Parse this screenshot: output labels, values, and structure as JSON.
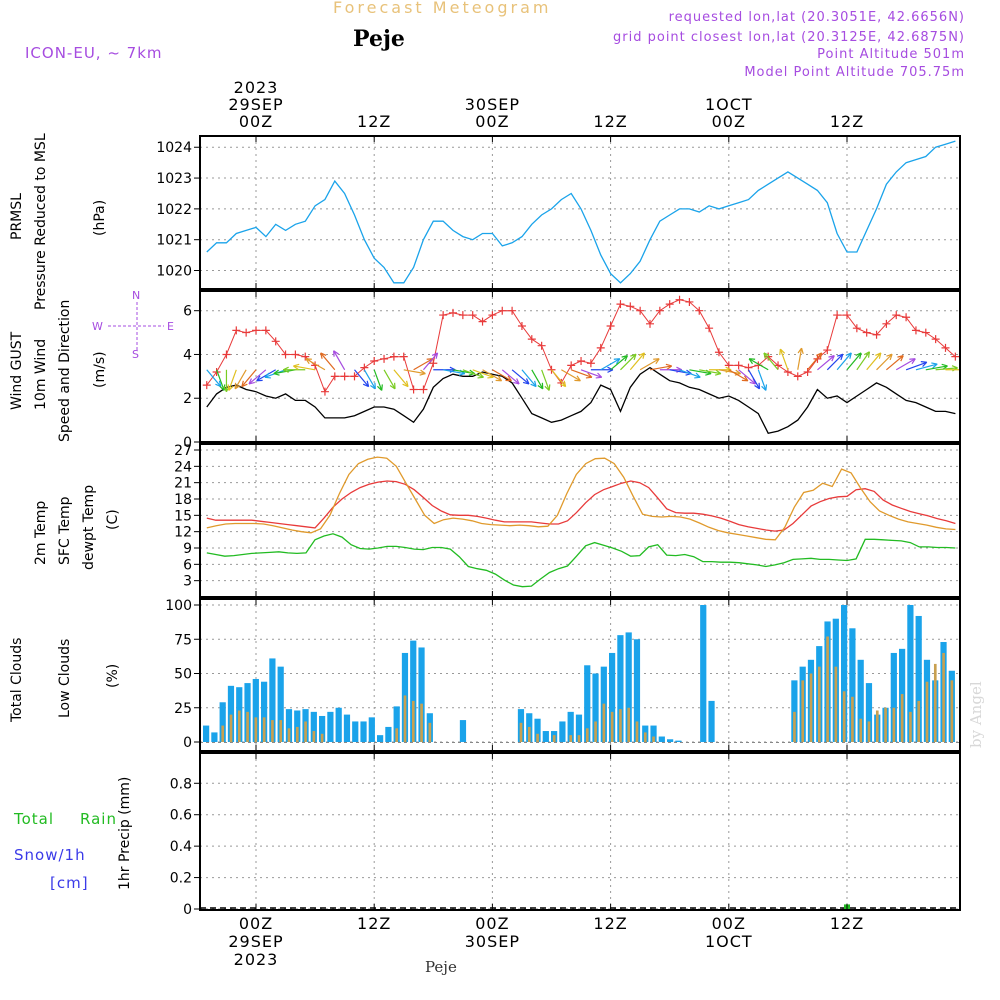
{
  "header": {
    "title": "Forecast Meteogram",
    "place": "Peje",
    "model": "ICON-EU, ~ 7km",
    "requested": "requested lon,lat (20.3051E, 42.6656N)",
    "gridpoint": "grid point closest lon,lat (20.3125E, 42.6875N)",
    "point_alt": "Point Altitude 501m",
    "model_alt": "Model Point Altitude 705.75m"
  },
  "time_axis": {
    "top_labels": [
      {
        "t": 0,
        "lines": [
          "2023",
          "29SEP",
          "00Z"
        ]
      },
      {
        "t": 12,
        "lines": [
          "12Z"
        ]
      },
      {
        "t": 24,
        "lines": [
          "30SEP",
          "00Z"
        ]
      },
      {
        "t": 36,
        "lines": [
          "12Z"
        ]
      },
      {
        "t": 48,
        "lines": [
          "1OCT",
          "00Z"
        ]
      },
      {
        "t": 60,
        "lines": [
          "12Z"
        ]
      }
    ],
    "bottom_labels": [
      {
        "t": 0,
        "lines": [
          "00Z",
          "29SEP",
          "2023"
        ]
      },
      {
        "t": 12,
        "lines": [
          "12Z"
        ]
      },
      {
        "t": 24,
        "lines": [
          "00Z",
          "30SEP"
        ]
      },
      {
        "t": 36,
        "lines": [
          "12Z"
        ]
      },
      {
        "t": 48,
        "lines": [
          "00Z",
          "1OCT"
        ]
      },
      {
        "t": 60,
        "lines": [
          "12Z"
        ]
      }
    ],
    "hours_start": -5,
    "hours_end": 71
  },
  "panels": {
    "pressure": {
      "labels": [
        "PRMSL",
        "Pressure Reduced to MSL",
        "(hPa)"
      ],
      "label_colors": [
        "#1aa3ea",
        "#1aa3ea",
        "#000000"
      ]
    },
    "wind": {
      "labels": [
        "Wind GUST",
        "10m Wind",
        "Speed and Direction",
        "(m/s)"
      ],
      "label_colors": [
        "#e83a3a",
        "#000000",
        "#22bb22",
        "#000000"
      ],
      "compass": {
        "n": "N",
        "s": "S",
        "w": "W",
        "e": "E"
      }
    },
    "temp": {
      "labels": [
        "2m Temp",
        "SFC Temp",
        "dewpt Temp",
        "(C)"
      ],
      "label_colors": [
        "#e83a3a",
        "#e09a2c",
        "#22bb22",
        "#000000"
      ]
    },
    "clouds": {
      "labels": [
        "Total Clouds",
        "Low Clouds",
        "(%)"
      ],
      "label_colors": [
        "#1aa3ea",
        "#e09a2c",
        "#000000"
      ]
    },
    "precip": {
      "ylabel": "1hr Precip (mm)",
      "legend_rain_1": "Total",
      "legend_rain_2": "Rain",
      "legend_snow": "Snow/1h",
      "legend_cm": "[cm]",
      "rain_color": "#22bb22",
      "snow_color": "#3a3ae8"
    }
  },
  "watermark": "by Angel",
  "footer_place": "Peje",
  "chart_data": [
    {
      "type": "line",
      "title": "PRMSL Pressure Reduced to MSL",
      "ylabel": "(hPa)",
      "ylim": [
        1019.4,
        1024.3
      ],
      "yticks": [
        1020,
        1021,
        1022,
        1023,
        1024
      ],
      "color": "#1aa3ea",
      "x": [
        -5,
        -4,
        -3,
        -2,
        -1,
        0,
        1,
        2,
        3,
        4,
        5,
        6,
        7,
        8,
        9,
        10,
        11,
        12,
        13,
        14,
        15,
        16,
        17,
        18,
        19,
        20,
        21,
        22,
        23,
        24,
        25,
        26,
        27,
        28,
        29,
        30,
        31,
        32,
        33,
        34,
        35,
        36,
        37,
        38,
        39,
        40,
        41,
        42,
        43,
        44,
        45,
        46,
        47,
        48,
        49,
        50,
        51,
        52,
        53,
        54,
        55,
        56,
        57,
        58,
        59,
        60,
        61,
        62,
        63,
        64,
        65,
        66,
        67,
        68,
        69,
        70,
        71
      ],
      "values": [
        1020.6,
        1020.9,
        1020.9,
        1021.2,
        1021.3,
        1021.4,
        1021.1,
        1021.5,
        1021.3,
        1021.5,
        1021.6,
        1022.1,
        1022.3,
        1022.9,
        1022.5,
        1021.8,
        1021.0,
        1020.4,
        1020.1,
        1019.6,
        1019.6,
        1020.1,
        1021.0,
        1021.6,
        1021.6,
        1021.3,
        1021.1,
        1021.0,
        1021.2,
        1021.2,
        1020.8,
        1020.9,
        1021.1,
        1021.5,
        1021.8,
        1022.0,
        1022.3,
        1022.5,
        1022.0,
        1021.3,
        1020.5,
        1019.9,
        1019.6,
        1019.9,
        1020.3,
        1021.0,
        1021.6,
        1021.8,
        1022.0,
        1022.0,
        1021.9,
        1022.1,
        1022.0,
        1022.1,
        1022.2,
        1022.3,
        1022.6,
        1022.8,
        1023.0,
        1023.2,
        1023.0,
        1022.8,
        1022.6,
        1022.2,
        1021.2,
        1020.6,
        1020.6,
        1021.3,
        1022.0,
        1022.8,
        1023.2,
        1023.5,
        1023.6,
        1023.7,
        1024.0,
        1024.1,
        1024.2
      ]
    },
    {
      "type": "line",
      "title": "Wind GUST / 10m Wind Speed and Direction",
      "ylabel": "(m/s)",
      "ylim": [
        0,
        6.9
      ],
      "yticks": [
        0,
        2,
        4,
        6
      ],
      "x_start": -5,
      "x_end": 71,
      "series": [
        {
          "name": "Wind GUST",
          "color": "#e83a3a",
          "marker": "+",
          "values": [
            2.6,
            3.2,
            4.0,
            5.1,
            5.0,
            5.1,
            5.1,
            4.6,
            4.0,
            4.0,
            3.9,
            3.5,
            2.3,
            3.0,
            3.0,
            3.0,
            3.4,
            3.7,
            3.8,
            3.9,
            3.9,
            2.4,
            2.4,
            3.6,
            5.8,
            5.9,
            5.8,
            5.8,
            5.5,
            5.8,
            6.0,
            6.0,
            5.3,
            4.7,
            4.4,
            3.3,
            2.7,
            3.5,
            3.7,
            3.6,
            4.3,
            5.3,
            6.3,
            6.2,
            6.0,
            5.4,
            6.0,
            6.3,
            6.5,
            6.4,
            6.0,
            5.2,
            4.1,
            3.5,
            3.5,
            3.4,
            3.5,
            3.9,
            3.5,
            3.2,
            3.0,
            3.2,
            3.8,
            4.2,
            5.8,
            5.8,
            5.2,
            5.0,
            4.9,
            5.4,
            5.8,
            5.7,
            5.1,
            5.0,
            4.7,
            4.3,
            3.9
          ]
        },
        {
          "name": "10m Wind",
          "color": "#000000",
          "values": [
            1.6,
            2.2,
            2.5,
            2.6,
            2.4,
            2.3,
            2.1,
            2.0,
            2.2,
            1.9,
            1.9,
            1.6,
            1.1,
            1.1,
            1.1,
            1.2,
            1.4,
            1.6,
            1.6,
            1.5,
            1.2,
            0.9,
            1.5,
            2.5,
            2.9,
            3.1,
            3.0,
            3.0,
            3.2,
            3.1,
            3.0,
            2.7,
            2.0,
            1.3,
            1.1,
            0.9,
            1.0,
            1.2,
            1.4,
            1.8,
            2.6,
            2.4,
            1.4,
            2.5,
            3.1,
            3.4,
            3.1,
            2.8,
            2.7,
            2.5,
            2.4,
            2.2,
            2.0,
            2.1,
            1.9,
            1.6,
            1.3,
            0.4,
            0.5,
            0.7,
            1.0,
            1.6,
            2.4,
            2.0,
            2.1,
            1.8,
            2.1,
            2.4,
            2.7,
            2.5,
            2.2,
            1.9,
            1.8,
            1.6,
            1.4,
            1.4,
            1.3
          ]
        },
        {
          "name": "wind-barbs",
          "y_level": 3.3,
          "directions": [
            140,
            160,
            180,
            200,
            210,
            220,
            230,
            240,
            250,
            260,
            270,
            280,
            300,
            320,
            330,
            140,
            150,
            160,
            150,
            140,
            100,
            60,
            40,
            90,
            100,
            100,
            110,
            110,
            120,
            120,
            130,
            130,
            140,
            150,
            160,
            140,
            120,
            110,
            110,
            90,
            60,
            50,
            45,
            40,
            60,
            80,
            90,
            100,
            110,
            100,
            100,
            90,
            100,
            120,
            130,
            150,
            160,
            300,
            320,
            340,
            10,
            40,
            50,
            45,
            40,
            40,
            35,
            40,
            45,
            50,
            60,
            70,
            75,
            80,
            85,
            90
          ]
        }
      ]
    },
    {
      "type": "line",
      "title": "2m Temp / SFC Temp / dewpt Temp",
      "ylabel": "(C)",
      "ylim": [
        0,
        27
      ],
      "yticks": [
        3,
        6,
        9,
        12,
        15,
        18,
        21,
        24,
        27
      ],
      "x_start": -5,
      "x_end": 71,
      "series": [
        {
          "name": "2m Temp",
          "color": "#e83a3a",
          "values": [
            14.5,
            14.1,
            14.1,
            14.1,
            14.1,
            14.1,
            13.9,
            13.7,
            13.5,
            13.3,
            13.1,
            12.9,
            12.7,
            14.5,
            16.5,
            18.0,
            19.2,
            20.1,
            20.7,
            21.1,
            21.3,
            21.2,
            20.7,
            19.7,
            18.3,
            16.8,
            15.8,
            15.1,
            15.0,
            15.0,
            14.8,
            14.5,
            14.1,
            13.8,
            13.8,
            13.8,
            13.8,
            13.6,
            13.4,
            13.4,
            14.0,
            15.5,
            17.3,
            18.8,
            19.7,
            20.3,
            20.9,
            21.3,
            21.0,
            20.1,
            18.2,
            16.2,
            15.5,
            15.4,
            15.4,
            15.2,
            14.9,
            14.5,
            13.9,
            13.3,
            12.9,
            12.6,
            12.3,
            12.1,
            12.3,
            13.5,
            15.1,
            16.7,
            17.5,
            18.1,
            18.4,
            18.5,
            19.7,
            19.9,
            19.4,
            17.8,
            16.9,
            16.3,
            15.7,
            15.3,
            14.9,
            14.4,
            14.0,
            13.5
          ]
        },
        {
          "name": "SFC Temp",
          "color": "#e09a2c",
          "values": [
            12.7,
            13.1,
            13.4,
            13.5,
            13.5,
            13.5,
            13.4,
            13.1,
            12.7,
            12.3,
            12.0,
            11.8,
            12.5,
            15.0,
            19.0,
            22.5,
            24.5,
            25.3,
            25.7,
            25.5,
            24.0,
            21.0,
            18.0,
            15.0,
            13.5,
            14.2,
            14.5,
            14.3,
            14.0,
            13.5,
            13.3,
            13.2,
            13.1,
            13.2,
            13.1,
            12.9,
            13.0,
            15.0,
            19.0,
            22.5,
            24.5,
            25.4,
            25.5,
            24.5,
            22.0,
            18.5,
            15.2,
            14.8,
            14.7,
            14.8,
            14.7,
            14.3,
            13.6,
            12.8,
            12.2,
            11.8,
            11.5,
            11.2,
            10.9,
            10.6,
            10.5,
            12.8,
            16.5,
            19.2,
            19.6,
            20.9,
            20.3,
            23.5,
            22.8,
            20.0,
            17.5,
            15.8,
            15.0,
            14.3,
            13.8,
            13.5,
            13.2,
            12.8,
            12.5,
            12.4
          ]
        },
        {
          "name": "dewpt Temp",
          "color": "#22bb22",
          "values": [
            8.1,
            7.8,
            7.5,
            7.6,
            7.8,
            8.0,
            8.1,
            8.2,
            8.3,
            8.1,
            8.0,
            8.1,
            10.5,
            11.2,
            11.6,
            11.0,
            9.6,
            8.9,
            8.8,
            9.0,
            9.3,
            9.3,
            9.1,
            8.8,
            8.7,
            9.1,
            9.1,
            8.8,
            7.4,
            5.6,
            5.2,
            4.9,
            4.2,
            3.1,
            2.2,
            1.9,
            2.0,
            3.3,
            4.5,
            5.2,
            5.7,
            7.5,
            9.4,
            10.0,
            9.5,
            9.0,
            8.4,
            7.5,
            7.6,
            9.2,
            9.6,
            7.7,
            7.6,
            7.8,
            7.4,
            6.5,
            6.5,
            6.4,
            6.4,
            6.3,
            6.1,
            5.9,
            5.6,
            5.9,
            6.3,
            6.9,
            7.0,
            7.1,
            6.9,
            6.9,
            6.8,
            6.7,
            7.0,
            10.6,
            10.6,
            10.5,
            10.4,
            10.3,
            10.0,
            9.2,
            9.2,
            9.1,
            9.1,
            9.0
          ]
        }
      ]
    },
    {
      "type": "bar",
      "title": "Total Clouds / Low Clouds",
      "ylabel": "(%)",
      "ylim": [
        0,
        100
      ],
      "yticks": [
        0,
        25,
        50,
        75,
        100
      ],
      "x_start": -5,
      "series": [
        {
          "name": "Total Clouds",
          "color": "#1aa3ea",
          "values": [
            12,
            7,
            29,
            41,
            40,
            43,
            46,
            44,
            61,
            55,
            24,
            23,
            24,
            22,
            19,
            22,
            25,
            20,
            15,
            15,
            18,
            5,
            11,
            26,
            65,
            74,
            69,
            21,
            0,
            0,
            0,
            16,
            0,
            0,
            0,
            0,
            0,
            0,
            24,
            21,
            17,
            8,
            8,
            15,
            22,
            20,
            56,
            50,
            55,
            65,
            78,
            80,
            75,
            12,
            12,
            4,
            2,
            1,
            0,
            0,
            100,
            30,
            0,
            0,
            0,
            0,
            0,
            0,
            0,
            0,
            0,
            45,
            55,
            60,
            70,
            88,
            90,
            100,
            83,
            60,
            43,
            20,
            25,
            65,
            68,
            100,
            92,
            60,
            45,
            73,
            52
          ]
        },
        {
          "name": "Low Clouds",
          "color": "#c8a050",
          "values": [
            0,
            0,
            12,
            20,
            23,
            22,
            18,
            18,
            16,
            16,
            10,
            11,
            15,
            8,
            6,
            0,
            0,
            0,
            0,
            0,
            0,
            0,
            0,
            10,
            34,
            30,
            28,
            14,
            0,
            0,
            0,
            0,
            0,
            0,
            0,
            0,
            0,
            0,
            14,
            11,
            6,
            0,
            5,
            0,
            5,
            5,
            10,
            15,
            28,
            22,
            24,
            25,
            15,
            7,
            4,
            0,
            0,
            0,
            0,
            0,
            0,
            0,
            0,
            0,
            0,
            0,
            0,
            0,
            0,
            0,
            0,
            22,
            45,
            50,
            55,
            77,
            55,
            37,
            33,
            17,
            15,
            23,
            25,
            25,
            35,
            22,
            30,
            44,
            57,
            65,
            45
          ]
        }
      ]
    },
    {
      "type": "bar",
      "title": "1hr Precip",
      "ylabel": "1hr Precip (mm)",
      "ylim": [
        0,
        0.98
      ],
      "yticks": [
        0,
        0.2,
        0.4,
        0.6,
        0.8
      ],
      "series": [
        {
          "name": "Total Rain",
          "color": "#22bb22",
          "x": [
            60
          ],
          "values": [
            0.01
          ]
        }
      ]
    }
  ]
}
